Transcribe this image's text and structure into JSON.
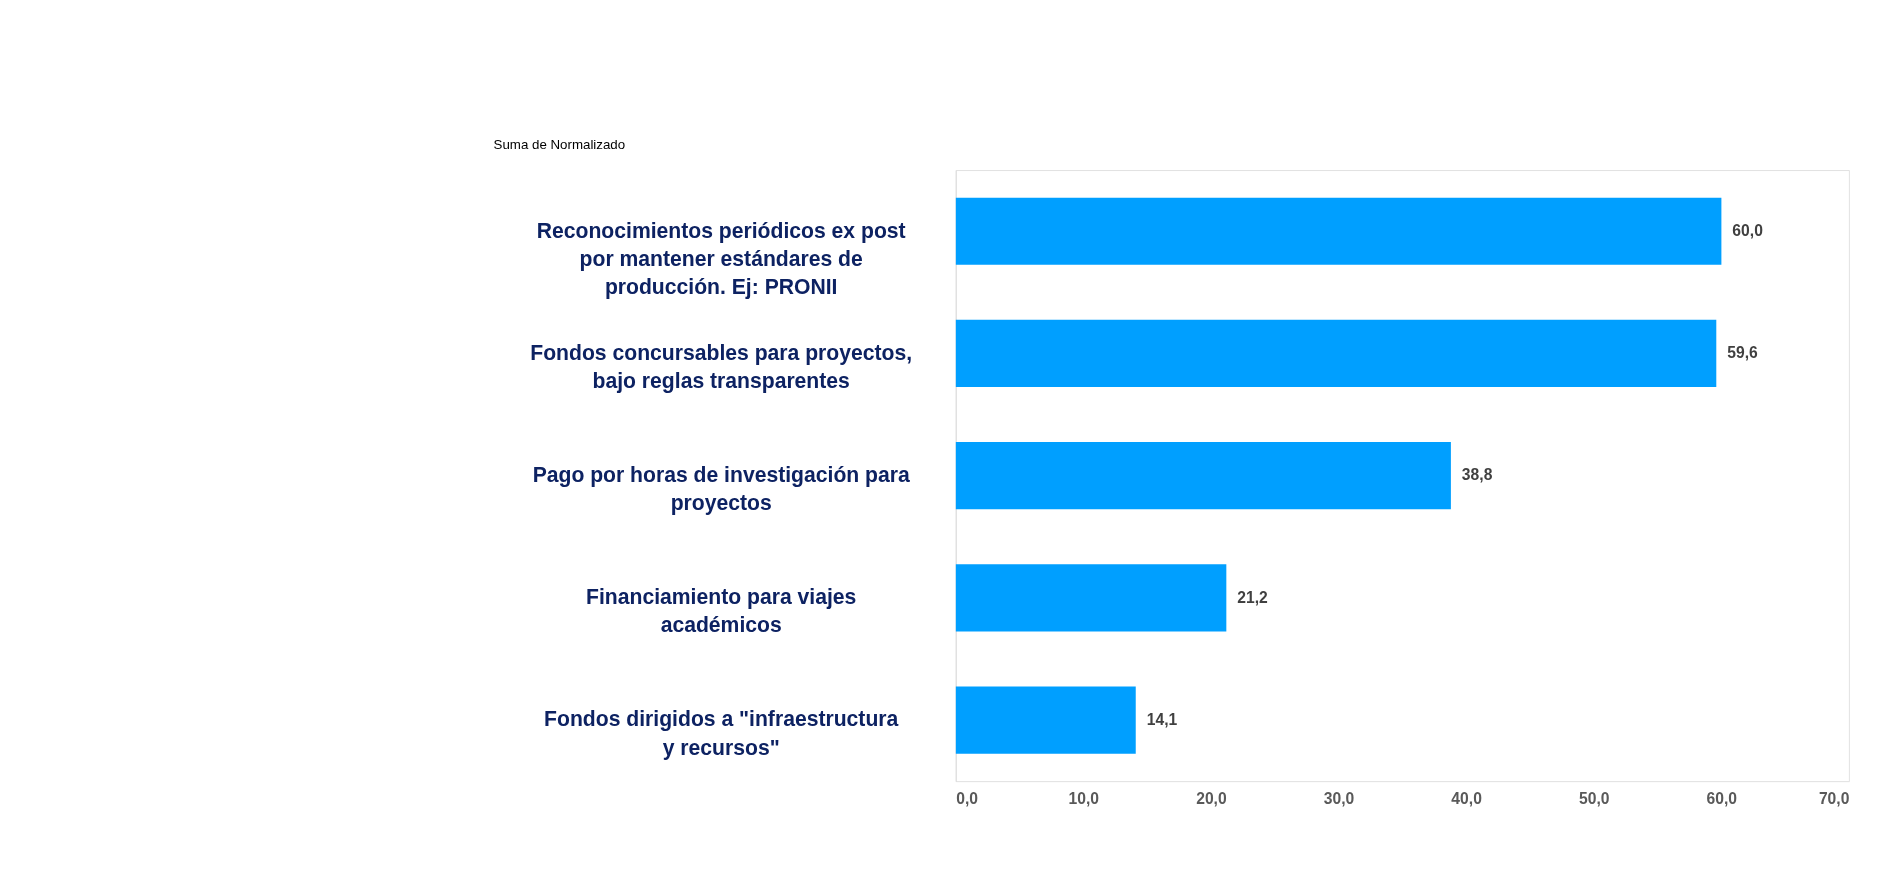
{
  "chart_data": {
    "type": "bar",
    "orientation": "horizontal",
    "categories": [
      "Reconocimientos periódicos ex post por mantener estándares de producción. Ej: PRONII",
      "Fondos concursables para proyectos, bajo reglas transparentes",
      "Pago por horas de investigación para proyectos",
      "Financiamiento para viajes académicos",
      "Fondos dirigidos a \"infraestructura y recursos\""
    ],
    "values": [
      60.0,
      59.6,
      38.8,
      21.2,
      14.1
    ],
    "value_labels": [
      "60,0",
      "59,6",
      "38,8",
      "21,2",
      "14,1"
    ],
    "color": "#009fff",
    "xlim": [
      0,
      70
    ],
    "xticks": [
      {
        "value": 0,
        "label": "0,0"
      },
      {
        "value": 10,
        "label": "10,0"
      },
      {
        "value": 20,
        "label": "20,0"
      },
      {
        "value": 30,
        "label": "30,0"
      },
      {
        "value": 40,
        "label": "40,0"
      },
      {
        "value": 50,
        "label": "50,0"
      },
      {
        "value": 60,
        "label": "60,0"
      },
      {
        "value": 70,
        "label": "70,0"
      }
    ],
    "grid": false,
    "annotations": [
      "Suma de Normalizado"
    ]
  }
}
